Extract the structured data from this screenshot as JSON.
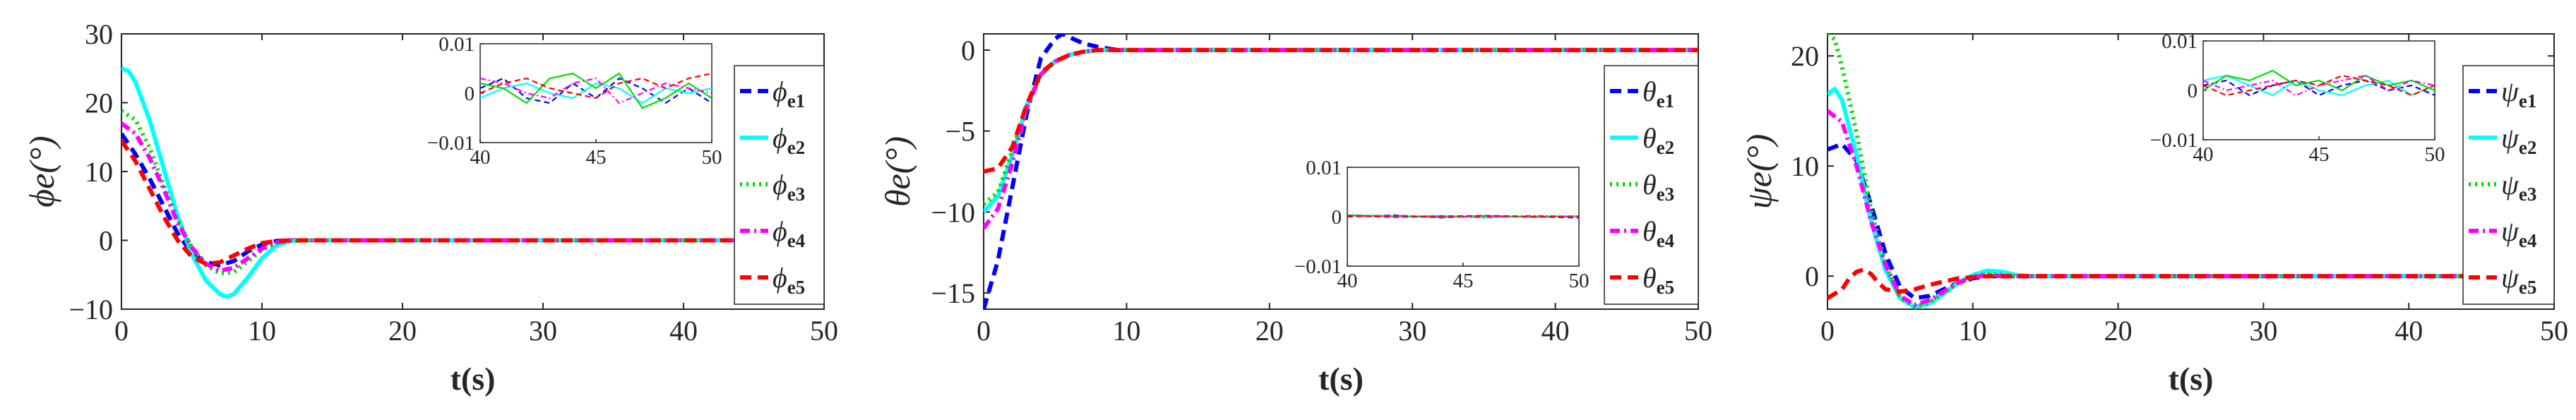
{
  "chart_data": [
    {
      "type": "line",
      "ylabel": "ϕe(°)",
      "xlabel": "t(s)",
      "xlim": [
        0,
        50
      ],
      "ylim": [
        -10,
        30
      ],
      "xticks": [
        "0",
        "10",
        "20",
        "30",
        "40",
        "50"
      ],
      "yticks": [
        "-10",
        "0",
        "10",
        "20",
        "30"
      ],
      "grid": false,
      "legend_position": "right",
      "series": [
        {
          "name": "ϕe1",
          "color": "#0000ff",
          "style": "dash",
          "x": [
            0,
            1,
            2,
            3,
            4,
            5,
            6,
            7,
            8,
            9,
            10,
            11,
            12,
            13,
            50
          ],
          "y": [
            15.5,
            12.5,
            9,
            5,
            1,
            -1.8,
            -3.2,
            -3.6,
            -3,
            -1.6,
            -0.6,
            -0.1,
            0,
            0,
            0
          ]
        },
        {
          "name": "ϕe2",
          "color": "#00ffff",
          "style": "solid",
          "x": [
            0,
            0.5,
            1,
            2,
            3,
            4,
            5,
            6,
            7,
            7.5,
            8,
            9,
            10,
            11,
            12,
            13,
            50
          ],
          "y": [
            25,
            24.6,
            23,
            17.5,
            10.5,
            3.5,
            -2,
            -5.8,
            -7.8,
            -8.2,
            -7.8,
            -5.4,
            -2.6,
            -0.8,
            -0.1,
            0,
            0
          ]
        },
        {
          "name": "ϕe3",
          "color": "#00dd00",
          "style": "dot",
          "x": [
            0,
            1,
            2,
            3,
            4,
            5,
            6,
            7,
            8,
            9,
            10,
            11,
            12,
            13,
            50
          ],
          "y": [
            18.8,
            17.5,
            13.5,
            8,
            3,
            -1,
            -3.6,
            -4.8,
            -4.6,
            -3,
            -1.4,
            -0.4,
            -0.1,
            0,
            0
          ]
        },
        {
          "name": "ϕe4",
          "color": "#ff00ff",
          "style": "dashdot",
          "x": [
            0,
            1,
            2,
            3,
            4,
            5,
            6,
            7,
            8,
            9,
            10,
            11,
            12,
            13,
            50
          ],
          "y": [
            17,
            15.5,
            12,
            7.5,
            2.5,
            -1,
            -3.4,
            -4.4,
            -4,
            -2.6,
            -1.2,
            -0.3,
            0,
            0,
            0
          ]
        },
        {
          "name": "ϕe5",
          "color": "#ff0000",
          "style": "dash",
          "x": [
            0,
            1,
            2,
            3,
            4,
            5,
            6,
            7,
            8,
            9,
            10,
            11,
            12,
            13,
            50
          ],
          "y": [
            14.5,
            11.5,
            7.5,
            3.5,
            0,
            -2.4,
            -3.4,
            -3.2,
            -2.2,
            -1.2,
            -0.4,
            -0.1,
            0,
            0,
            0
          ]
        }
      ],
      "inset": {
        "xlim": [
          40,
          50
        ],
        "ylim": [
          -0.01,
          0.01
        ],
        "xticks": [
          "40",
          "45",
          "50"
        ],
        "yticks": [
          "-0.01",
          "0",
          "0.01"
        ],
        "series": [
          {
            "color": "#0000ff",
            "style": "dash",
            "x": [
              40,
              41,
              42,
              43,
              44,
              45,
              46,
              47,
              48,
              49,
              50
            ],
            "y": [
              0.001,
              0.003,
              -0.001,
              -0.002,
              0.002,
              -0.001,
              0.003,
              0.001,
              -0.002,
              0.001,
              -0.002
            ]
          },
          {
            "color": "#00ffff",
            "style": "solid",
            "x": [
              40,
              41,
              42,
              43,
              44,
              45,
              46,
              47,
              48,
              49,
              50
            ],
            "y": [
              -0.001,
              0.001,
              0.002,
              0,
              -0.001,
              0.002,
              0.001,
              -0.002,
              0.001,
              0,
              0.001
            ]
          },
          {
            "color": "#00dd00",
            "style": "solid",
            "x": [
              40,
              41,
              42,
              43,
              44,
              45,
              46,
              47,
              48,
              49,
              50
            ],
            "y": [
              0.002,
              0.001,
              -0.002,
              0.003,
              0.004,
              0.001,
              0.004,
              -0.003,
              -0.001,
              0.002,
              -0.001
            ]
          },
          {
            "color": "#ff00ff",
            "style": "dashdot",
            "x": [
              40,
              41,
              42,
              43,
              44,
              45,
              46,
              47,
              48,
              49,
              50
            ],
            "y": [
              0.003,
              0.002,
              0,
              -0.001,
              0.002,
              0.003,
              -0.002,
              0,
              0.002,
              0.001,
              0
            ]
          },
          {
            "color": "#ff0000",
            "style": "dash",
            "x": [
              40,
              41,
              42,
              43,
              44,
              45,
              46,
              47,
              48,
              49,
              50
            ],
            "y": [
              0,
              0.002,
              0.003,
              0.001,
              0,
              -0.001,
              0.002,
              0.003,
              0.001,
              0.003,
              0.004
            ]
          }
        ]
      }
    },
    {
      "type": "line",
      "ylabel": "θe(°)",
      "xlabel": "t(s)",
      "xlim": [
        0,
        50
      ],
      "ylim": [
        -16,
        1
      ],
      "xticks": [
        "0",
        "10",
        "20",
        "30",
        "40",
        "50"
      ],
      "yticks": [
        "-15",
        "-10",
        "-5",
        "0"
      ],
      "grid": false,
      "legend_position": "right",
      "series": [
        {
          "name": "θe1",
          "color": "#0000ff",
          "style": "dash",
          "x": [
            0,
            1,
            2,
            3,
            4,
            5,
            5.5,
            6,
            7,
            8,
            9,
            10,
            50
          ],
          "y": [
            -16,
            -13,
            -8.5,
            -4,
            -0.5,
            0.7,
            1.0,
            0.8,
            0.4,
            0.2,
            0.05,
            0,
            0
          ]
        },
        {
          "name": "θe2",
          "color": "#00ffff",
          "style": "solid",
          "x": [
            0,
            1,
            2,
            3,
            4,
            5,
            6,
            7,
            8,
            9,
            10,
            50
          ],
          "y": [
            -10,
            -9,
            -6.5,
            -3.5,
            -1.5,
            -0.7,
            -0.3,
            -0.1,
            0,
            0,
            0,
            0
          ]
        },
        {
          "name": "θe3",
          "color": "#00dd00",
          "style": "dot",
          "x": [
            0,
            1,
            2,
            3,
            4,
            5,
            6,
            7,
            8,
            9,
            10,
            50
          ],
          "y": [
            -9.5,
            -8.8,
            -6.2,
            -3.4,
            -1.5,
            -0.7,
            -0.3,
            -0.1,
            0,
            0,
            0,
            0
          ]
        },
        {
          "name": "θe4",
          "color": "#ff00ff",
          "style": "dashdot",
          "x": [
            0,
            1,
            2,
            3,
            4,
            5,
            6,
            7,
            8,
            9,
            10,
            50
          ],
          "y": [
            -11,
            -9.8,
            -7,
            -3.6,
            -1.5,
            -0.7,
            -0.3,
            -0.1,
            0,
            0,
            0,
            0
          ]
        },
        {
          "name": "θe5",
          "color": "#ff0000",
          "style": "dash",
          "x": [
            0,
            1,
            2,
            3,
            4,
            5,
            6,
            7,
            8,
            9,
            10,
            50
          ],
          "y": [
            -7.5,
            -7.3,
            -6,
            -3.4,
            -1.4,
            -0.7,
            -0.3,
            -0.1,
            0,
            0,
            0,
            0
          ]
        }
      ],
      "inset": {
        "xlim": [
          40,
          50
        ],
        "ylim": [
          -0.01,
          0.01
        ],
        "xticks": [
          "40",
          "45",
          "50"
        ],
        "yticks": [
          "-0.01",
          "0",
          "0.01"
        ],
        "series": [
          {
            "color": "#0000ff",
            "style": "dash",
            "x": [
              40,
              42,
              44,
              46,
              48,
              50
            ],
            "y": [
              0,
              0.0003,
              -0.0002,
              0.0002,
              0,
              -0.0002
            ]
          },
          {
            "color": "#00ffff",
            "style": "solid",
            "x": [
              40,
              42,
              44,
              46,
              48,
              50
            ],
            "y": [
              0.0002,
              0,
              0.0002,
              -0.0002,
              0.0001,
              0
            ]
          },
          {
            "color": "#00dd00",
            "style": "solid",
            "x": [
              40,
              42,
              44,
              46,
              48,
              50
            ],
            "y": [
              0.0003,
              0.0001,
              -0.0001,
              0.0002,
              -0.0001,
              0.0001
            ]
          },
          {
            "color": "#ff00ff",
            "style": "dashdot",
            "x": [
              40,
              42,
              44,
              46,
              48,
              50
            ],
            "y": [
              0.0001,
              0.0002,
              0,
              -0.0001,
              0.0002,
              0
            ]
          },
          {
            "color": "#ff0000",
            "style": "dash",
            "x": [
              40,
              42,
              44,
              46,
              48,
              50
            ],
            "y": [
              0.0002,
              -0.0001,
              0.0001,
              0.0002,
              0,
              0.0001
            ]
          }
        ]
      }
    },
    {
      "type": "line",
      "ylabel": "ψe(°)",
      "xlabel": "t(s)",
      "xlim": [
        0,
        50
      ],
      "ylim": [
        -3,
        22
      ],
      "xticks": [
        "0",
        "10",
        "20",
        "30",
        "40",
        "50"
      ],
      "yticks": [
        "0",
        "10",
        "20"
      ],
      "grid": false,
      "legend_position": "right",
      "series": [
        {
          "name": "ψe1",
          "color": "#0000ff",
          "style": "dash",
          "x": [
            0,
            1,
            2,
            3,
            4,
            5,
            6,
            7,
            8,
            9,
            10,
            11,
            12,
            13,
            50
          ],
          "y": [
            11.5,
            12,
            10.5,
            6.5,
            2,
            -1,
            -2,
            -1.8,
            -1.2,
            -0.6,
            -0.2,
            0,
            0,
            0,
            0
          ]
        },
        {
          "name": "ψe2",
          "color": "#00ffff",
          "style": "solid",
          "x": [
            0,
            0.5,
            1,
            2,
            3,
            4,
            5,
            6,
            7,
            8,
            9,
            10,
            11,
            12,
            13,
            14,
            50
          ],
          "y": [
            16.5,
            17,
            16,
            11,
            5,
            0.5,
            -2,
            -2.8,
            -2.5,
            -1.6,
            -0.6,
            0.1,
            0.5,
            0.4,
            0.1,
            0,
            0
          ]
        },
        {
          "name": "ψe3",
          "color": "#00dd00",
          "style": "dot",
          "x": [
            0,
            0.5,
            1,
            2,
            3,
            4,
            5,
            6,
            7,
            8,
            9,
            10,
            11,
            12,
            13,
            50
          ],
          "y": [
            22,
            21.5,
            19,
            13,
            6,
            1,
            -2,
            -2.8,
            -2.4,
            -1.5,
            -0.6,
            0,
            0.2,
            0.1,
            0,
            0
          ]
        },
        {
          "name": "ψe4",
          "color": "#ff00ff",
          "style": "dashdot",
          "x": [
            0,
            1,
            2,
            3,
            4,
            5,
            6,
            7,
            8,
            9,
            10,
            11,
            12,
            13,
            50
          ],
          "y": [
            15,
            14,
            10,
            5,
            1,
            -1.8,
            -2.6,
            -2.2,
            -1.4,
            -0.6,
            -0.1,
            0.1,
            0,
            0,
            0
          ]
        },
        {
          "name": "ψe5",
          "color": "#ff0000",
          "style": "dash",
          "x": [
            0,
            1,
            1.5,
            2,
            2.5,
            3,
            3.5,
            4,
            5,
            6,
            7,
            8,
            9,
            10,
            11,
            12,
            50
          ],
          "y": [
            -2,
            -1.2,
            -0.2,
            0.4,
            0.6,
            0.2,
            -0.6,
            -1.2,
            -1.4,
            -1.2,
            -0.8,
            -0.5,
            -0.2,
            -0.1,
            0,
            0,
            0
          ]
        }
      ],
      "inset": {
        "xlim": [
          40,
          50
        ],
        "ylim": [
          -0.01,
          0.01
        ],
        "xticks": [
          "40",
          "45",
          "50"
        ],
        "yticks": [
          "-0.01",
          "0",
          "0.01"
        ],
        "series": [
          {
            "color": "#0000ff",
            "style": "dash",
            "x": [
              40,
              41,
              42,
              43,
              44,
              45,
              46,
              47,
              48,
              49,
              50
            ],
            "y": [
              0.001,
              0.002,
              -0.001,
              0.001,
              0.002,
              -0.001,
              0.001,
              0.002,
              0,
              0.001,
              -0.001
            ]
          },
          {
            "color": "#00ffff",
            "style": "solid",
            "x": [
              40,
              41,
              42,
              43,
              44,
              45,
              46,
              47,
              48,
              49,
              50
            ],
            "y": [
              0.002,
              0.003,
              0.001,
              -0.001,
              0.002,
              0,
              -0.001,
              0.001,
              0.002,
              -0.001,
              0.001
            ]
          },
          {
            "color": "#00dd00",
            "style": "solid",
            "x": [
              40,
              41,
              42,
              43,
              44,
              45,
              46,
              47,
              48,
              49,
              50
            ],
            "y": [
              0,
              0.003,
              0.002,
              0.004,
              0.001,
              0.002,
              0,
              0.003,
              0.001,
              0.002,
              0
            ]
          },
          {
            "color": "#ff00ff",
            "style": "dashdot",
            "x": [
              40,
              41,
              42,
              43,
              44,
              45,
              46,
              47,
              48,
              49,
              50
            ],
            "y": [
              0.002,
              0,
              0.001,
              0.002,
              -0.001,
              0.001,
              0.002,
              0.003,
              0,
              0.002,
              0.001
            ]
          },
          {
            "color": "#ff0000",
            "style": "dash",
            "x": [
              40,
              41,
              42,
              43,
              44,
              45,
              46,
              47,
              48,
              49,
              50
            ],
            "y": [
              0.001,
              -0.001,
              0,
              0.001,
              0.002,
              0.001,
              0.003,
              0.002,
              0.001,
              -0.001,
              0.001
            ]
          }
        ]
      }
    }
  ]
}
